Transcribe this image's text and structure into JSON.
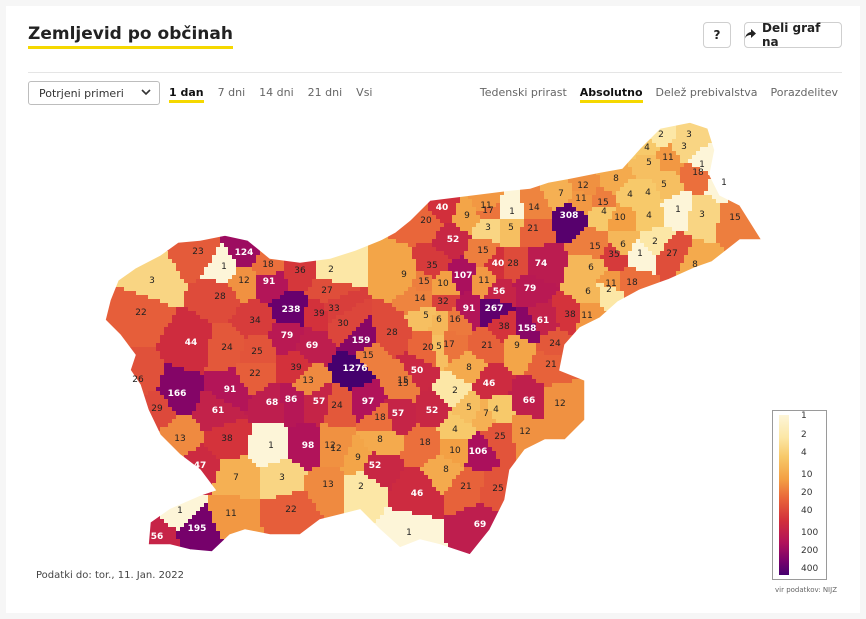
{
  "header": {
    "title": "Zemljevid po občinah",
    "help_label": "?",
    "share_label": "Deli graf na"
  },
  "controls": {
    "metric_select": "Potrjeni primeri",
    "ranges": [
      "1 dan",
      "7 dni",
      "14 dni",
      "21 dni",
      "Vsi"
    ],
    "active_range": "1 dan",
    "modes": [
      "Tedenski prirast",
      "Absolutno",
      "Delež prebivalstva",
      "Porazdelitev"
    ],
    "active_mode": "Absolutno"
  },
  "legend": {
    "ticks": [
      "1",
      "2",
      "4",
      "10",
      "20",
      "40",
      "100",
      "200",
      "400"
    ],
    "colors": [
      "#fdf5d8",
      "#fce7a6",
      "#f7c96a",
      "#f3a044",
      "#e9663a",
      "#d22f3b",
      "#b0125b",
      "#74006c",
      "#45006e"
    ]
  },
  "footer": {
    "data_date": "Podatki do: tor., 11. Jan. 2022",
    "source": "vir podatkov: NIJZ"
  },
  "map_values": [
    {
      "v": "2"
    },
    {
      "v": "3"
    },
    {
      "v": "4"
    },
    {
      "v": "3"
    },
    {
      "v": "11"
    },
    {
      "v": "5"
    },
    {
      "v": "1"
    },
    {
      "v": "18"
    },
    {
      "v": "1"
    },
    {
      "v": "12"
    },
    {
      "v": "8"
    },
    {
      "v": "7"
    },
    {
      "v": "11"
    },
    {
      "v": "15"
    },
    {
      "v": "4"
    },
    {
      "v": "4"
    },
    {
      "v": "5"
    },
    {
      "v": "308"
    },
    {
      "v": "14"
    },
    {
      "v": "40"
    },
    {
      "v": "11"
    },
    {
      "v": "17"
    },
    {
      "v": "1"
    },
    {
      "v": "20"
    },
    {
      "v": "9"
    },
    {
      "v": "3"
    },
    {
      "v": "5"
    },
    {
      "v": "21"
    },
    {
      "v": "4"
    },
    {
      "v": "10"
    },
    {
      "v": "4"
    },
    {
      "v": "1"
    },
    {
      "v": "3"
    },
    {
      "v": "15"
    },
    {
      "v": "52"
    },
    {
      "v": "15"
    },
    {
      "v": "15"
    },
    {
      "v": "35"
    },
    {
      "v": "6"
    },
    {
      "v": "2"
    },
    {
      "v": "27"
    },
    {
      "v": "1"
    },
    {
      "v": "124"
    },
    {
      "v": "23"
    },
    {
      "v": "1"
    },
    {
      "v": "18"
    },
    {
      "v": "36"
    },
    {
      "v": "2"
    },
    {
      "v": "35"
    },
    {
      "v": "40"
    },
    {
      "v": "28"
    },
    {
      "v": "74"
    },
    {
      "v": "6"
    },
    {
      "v": "8"
    },
    {
      "v": "3"
    },
    {
      "v": "12"
    },
    {
      "v": "91"
    },
    {
      "v": "9"
    },
    {
      "v": "107"
    },
    {
      "v": "11"
    },
    {
      "v": "15"
    },
    {
      "v": "10"
    },
    {
      "v": "11"
    },
    {
      "v": "18"
    },
    {
      "v": "56"
    },
    {
      "v": "79"
    },
    {
      "v": "28"
    },
    {
      "v": "27"
    },
    {
      "v": "14"
    },
    {
      "v": "32"
    },
    {
      "v": "91"
    },
    {
      "v": "267"
    },
    {
      "v": "6"
    },
    {
      "v": "2"
    },
    {
      "v": "22"
    },
    {
      "v": "238"
    },
    {
      "v": "39"
    },
    {
      "v": "33"
    },
    {
      "v": "5"
    },
    {
      "v": "6"
    },
    {
      "v": "16"
    },
    {
      "v": "61"
    },
    {
      "v": "38"
    },
    {
      "v": "11"
    },
    {
      "v": "34"
    },
    {
      "v": "30"
    },
    {
      "v": "38"
    },
    {
      "v": "158"
    },
    {
      "v": "44"
    },
    {
      "v": "79"
    },
    {
      "v": "69"
    },
    {
      "v": "159"
    },
    {
      "v": "28"
    },
    {
      "v": "20"
    },
    {
      "v": "17"
    },
    {
      "v": "5"
    },
    {
      "v": "21"
    },
    {
      "v": "9"
    },
    {
      "v": "24"
    },
    {
      "v": "24"
    },
    {
      "v": "25"
    },
    {
      "v": "15"
    },
    {
      "v": "15"
    },
    {
      "v": "1276"
    },
    {
      "v": "50"
    },
    {
      "v": "8"
    },
    {
      "v": "21"
    },
    {
      "v": "26"
    },
    {
      "v": "22"
    },
    {
      "v": "39"
    },
    {
      "v": "13"
    },
    {
      "v": "15"
    },
    {
      "v": "46"
    },
    {
      "v": "166"
    },
    {
      "v": "91"
    },
    {
      "v": "68"
    },
    {
      "v": "86"
    },
    {
      "v": "57"
    },
    {
      "v": "24"
    },
    {
      "v": "97"
    },
    {
      "v": "52"
    },
    {
      "v": "2"
    },
    {
      "v": "5"
    },
    {
      "v": "7"
    },
    {
      "v": "4"
    },
    {
      "v": "66"
    },
    {
      "v": "12"
    },
    {
      "v": "29"
    },
    {
      "v": "61"
    },
    {
      "v": "57"
    },
    {
      "v": "18"
    },
    {
      "v": "13"
    },
    {
      "v": "38"
    },
    {
      "v": "1"
    },
    {
      "v": "98"
    },
    {
      "v": "12"
    },
    {
      "v": "8"
    },
    {
      "v": "18"
    },
    {
      "v": "4"
    },
    {
      "v": "25"
    },
    {
      "v": "12"
    },
    {
      "v": "10"
    },
    {
      "v": "106"
    },
    {
      "v": "47"
    },
    {
      "v": "12"
    },
    {
      "v": "9"
    },
    {
      "v": "52"
    },
    {
      "v": "8"
    },
    {
      "v": "7"
    },
    {
      "v": "3"
    },
    {
      "v": "13"
    },
    {
      "v": "2"
    },
    {
      "v": "46"
    },
    {
      "v": "21"
    },
    {
      "v": "25"
    },
    {
      "v": "11"
    },
    {
      "v": "22"
    },
    {
      "v": "1"
    },
    {
      "v": "195"
    },
    {
      "v": "56"
    },
    {
      "v": "69"
    },
    {
      "v": "1"
    }
  ]
}
